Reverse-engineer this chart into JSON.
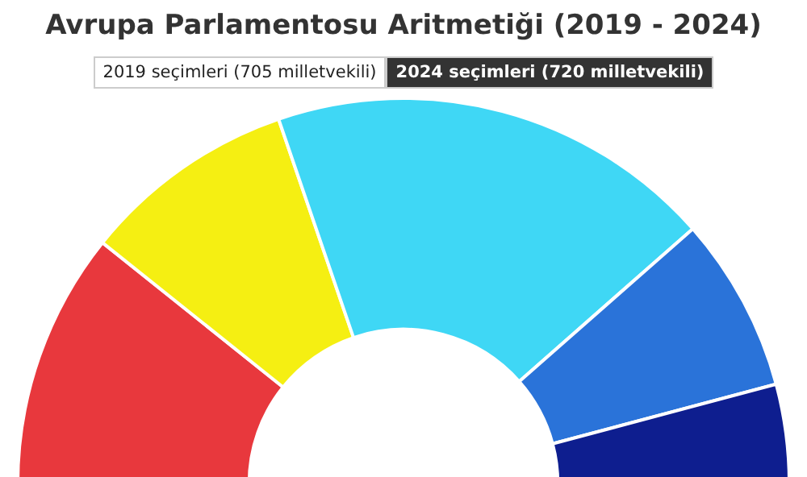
{
  "chart_data": {
    "type": "donut",
    "title": "Avrupa Parlamentosu Aritmetiği (2019 - 2024)",
    "annotations": [
      "2019 seçimleri (705 milletvekili)",
      "2024 seçimleri (720 milletvekili)"
    ],
    "categories": [
      null,
      null,
      null,
      null,
      null
    ],
    "values": [
      21.5,
      18,
      37.5,
      14.7,
      8.3
    ],
    "colors": [
      "#e8383d",
      "#f5ef12",
      "#3fd7f5",
      "#2a73d9",
      "#0e1e8f"
    ],
    "legend": false
  }
}
